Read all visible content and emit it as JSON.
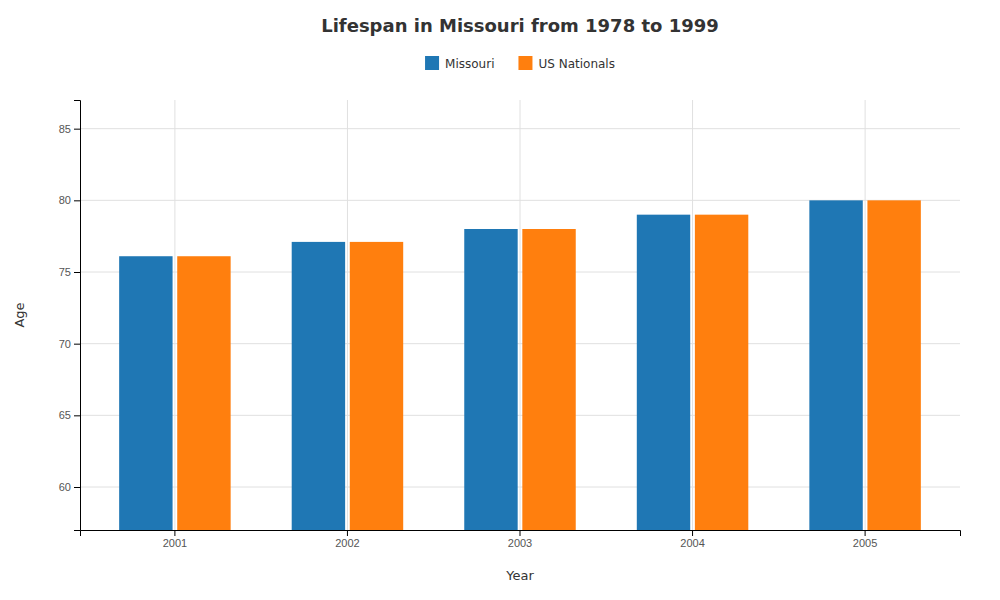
{
  "chart_data": {
    "type": "bar",
    "title": "Lifespan in Missouri from 1978 to 1999",
    "xlabel": "Year",
    "ylabel": "Age",
    "categories": [
      "2001",
      "2002",
      "2003",
      "2004",
      "2005"
    ],
    "series": [
      {
        "name": "Missouri",
        "values": [
          76.1,
          77.1,
          78.0,
          79.0,
          80.0
        ]
      },
      {
        "name": "US Nationals",
        "values": [
          76.1,
          77.1,
          78.0,
          79.0,
          80.0
        ]
      }
    ],
    "ylim": [
      57,
      87
    ],
    "yticks": [
      60,
      65,
      70,
      75,
      80,
      85
    ],
    "grid": true,
    "legend": "top"
  }
}
